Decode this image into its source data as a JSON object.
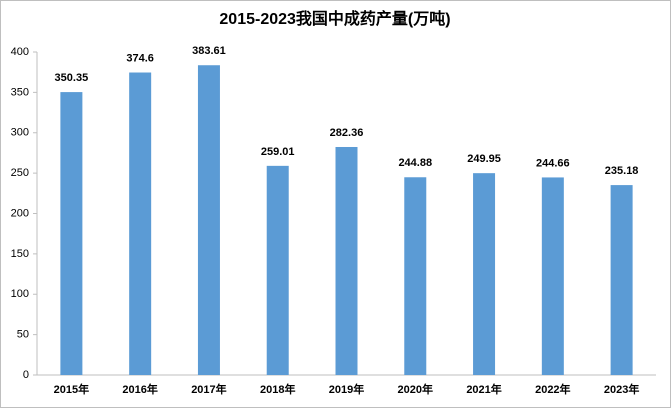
{
  "chart_data": {
    "type": "bar",
    "title": "2015-2023我国中成药产量(万吨)",
    "categories": [
      "2015年",
      "2016年",
      "2017年",
      "2018年",
      "2019年",
      "2020年",
      "2021年",
      "2022年",
      "2023年"
    ],
    "values": [
      350.35,
      374.6,
      383.61,
      259.01,
      282.36,
      244.88,
      249.95,
      244.66,
      235.18
    ],
    "color": "#5b9bd5",
    "ylim": [
      0,
      400
    ],
    "yticks": [
      0,
      50,
      100,
      150,
      200,
      250,
      300,
      350,
      400
    ],
    "grid": false
  }
}
